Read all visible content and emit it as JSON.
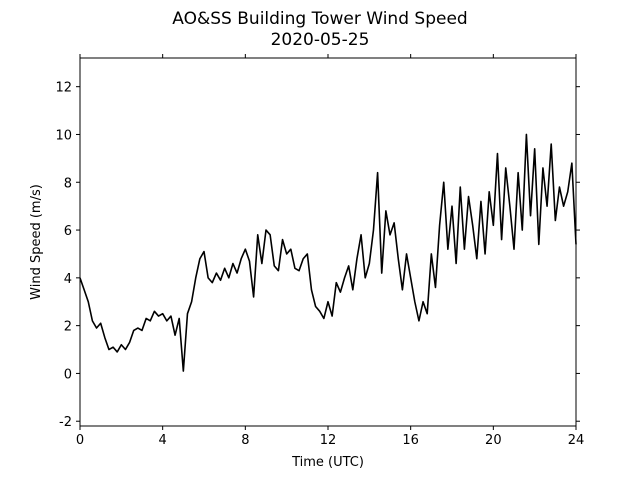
{
  "chart_data": {
    "type": "line",
    "title": "AO&SS Building Tower Wind Speed",
    "subtitle": "2020-05-25",
    "x_label": "Time (UTC)",
    "y_label": "Wind Speed (m/s)",
    "xlim": [
      0,
      24
    ],
    "xticks": [
      0,
      4,
      8,
      12,
      16,
      20,
      24
    ],
    "ylim": [
      -2.2,
      13.2
    ],
    "yticks": [
      -2,
      0,
      2,
      4,
      6,
      8,
      10,
      12
    ],
    "x": [
      0,
      0.2,
      0.4,
      0.6,
      0.8,
      1,
      1.2,
      1.4,
      1.6,
      1.8,
      2,
      2.2,
      2.4,
      2.6,
      2.8,
      3,
      3.2,
      3.4,
      3.6,
      3.8,
      4,
      4.2,
      4.4,
      4.6,
      4.8,
      5,
      5.2,
      5.4,
      5.6,
      5.8,
      6,
      6.2,
      6.4,
      6.6,
      6.8,
      7,
      7.2,
      7.4,
      7.6,
      7.8,
      8,
      8.2,
      8.4,
      8.6,
      8.8,
      9,
      9.2,
      9.4,
      9.6,
      9.8,
      10,
      10.2,
      10.4,
      10.6,
      10.8,
      11,
      11.2,
      11.4,
      11.6,
      11.8,
      12,
      12.2,
      12.4,
      12.6,
      12.8,
      13,
      13.2,
      13.4,
      13.6,
      13.8,
      14,
      14.2,
      14.4,
      14.6,
      14.8,
      15,
      15.2,
      15.4,
      15.6,
      15.8,
      16,
      16.2,
      16.4,
      16.6,
      16.8,
      17,
      17.2,
      17.4,
      17.6,
      17.8,
      18,
      18.2,
      18.4,
      18.6,
      18.8,
      19,
      19.2,
      19.4,
      19.6,
      19.8,
      20,
      20.2,
      20.4,
      20.6,
      20.8,
      21,
      21.2,
      21.4,
      21.6,
      21.8,
      22,
      22.2,
      22.4,
      22.6,
      22.8,
      23,
      23.2,
      23.4,
      23.6,
      23.8,
      24
    ],
    "series": [
      {
        "color": "#000000",
        "values": [
          4.0,
          3.5,
          3.0,
          2.2,
          1.9,
          2.1,
          1.5,
          1.0,
          1.1,
          0.9,
          1.2,
          1.0,
          1.3,
          1.8,
          1.9,
          1.8,
          2.3,
          2.2,
          2.6,
          2.4,
          2.5,
          2.2,
          2.4,
          1.6,
          2.3,
          0.1,
          2.5,
          3.0,
          4.0,
          4.8,
          5.1,
          4.0,
          3.8,
          4.2,
          3.9,
          4.4,
          4.0,
          4.6,
          4.2,
          4.8,
          5.2,
          4.7,
          3.2,
          5.8,
          4.6,
          6.0,
          5.8,
          4.5,
          4.3,
          5.6,
          5.0,
          5.2,
          4.4,
          4.3,
          4.8,
          5.0,
          3.5,
          2.8,
          2.6,
          2.3,
          3.0,
          2.4,
          3.8,
          3.4,
          4.0,
          4.5,
          3.5,
          4.8,
          5.8,
          4.0,
          4.6,
          6.0,
          8.4,
          4.2,
          6.8,
          5.8,
          6.3,
          4.8,
          3.5,
          5.0,
          4.0,
          3.0,
          2.2,
          3.0,
          2.5,
          5.0,
          3.6,
          6.2,
          8.0,
          5.2,
          7.0,
          4.6,
          7.8,
          5.2,
          7.4,
          6.2,
          4.8,
          7.2,
          5.0,
          7.6,
          6.2,
          9.2,
          5.6,
          8.6,
          7.0,
          5.2,
          8.4,
          6.0,
          10.0,
          6.6,
          9.4,
          5.4,
          8.6,
          7.0,
          9.6,
          6.4,
          7.8,
          7.0,
          7.6,
          8.8,
          5.4
        ]
      }
    ]
  }
}
